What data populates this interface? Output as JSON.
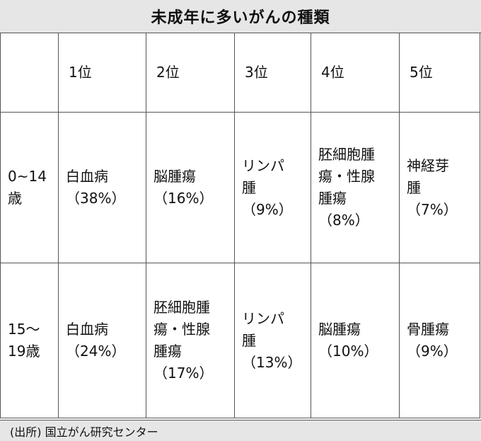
{
  "title": "未成年に多いがんの種類",
  "header": {
    "blank": "",
    "ranks": [
      "1位",
      "2位",
      "3位",
      "4位",
      "5位"
    ]
  },
  "rows": [
    {
      "age": "0~14\n歳",
      "cells": [
        "白血病\n（38%）",
        "脳腫瘍\n（16%）",
        "リンパ\n腫\n（9%）",
        "胚細胞腫\n瘍・性腺\n腫瘍\n（8%）",
        "神経芽\n腫\n（7%）"
      ]
    },
    {
      "age": "15〜\n19歳",
      "cells": [
        "白血病\n（24%）",
        "胚細胞腫\n瘍・性腺\n腫瘍\n（17%）",
        "リンパ\n腫\n（13%）",
        "脳腫瘍\n（10%）",
        "骨腫瘍\n（9%）"
      ]
    }
  ],
  "source": "(出所) 国立がん研究センター"
}
